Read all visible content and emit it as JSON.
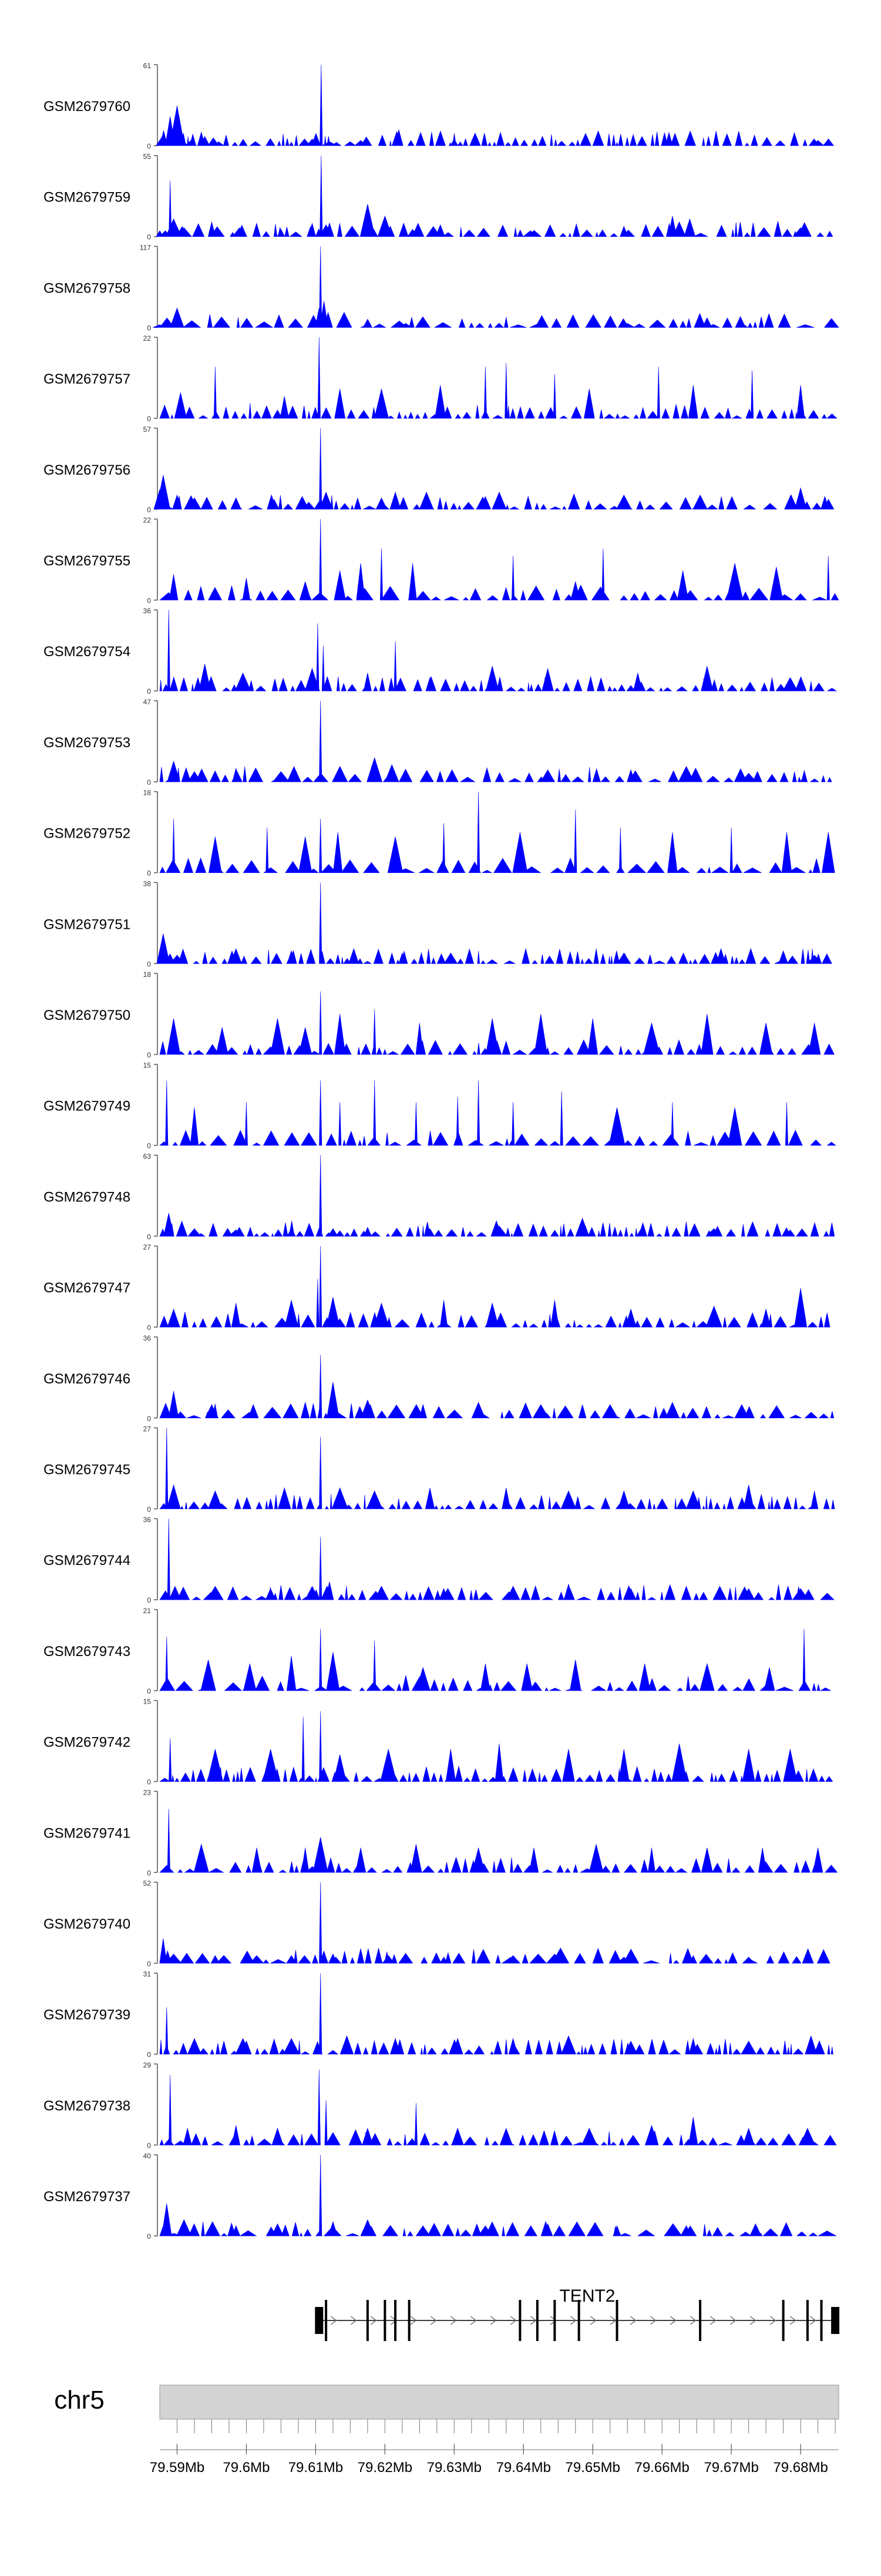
{
  "chart_data": {
    "type": "area",
    "title": "",
    "xlabel": "",
    "ylabel": "",
    "chromosome": "chr5",
    "gene_label": "TENT2",
    "colors": {
      "signal": "#0000ff",
      "axis": "#555555",
      "gene": "#000000",
      "ideogram": "#d3d3d3"
    },
    "x_range": [
      79.5875,
      79.6855
    ],
    "x_ticks": [
      {
        "value": 79.59,
        "label": "79.59Mb"
      },
      {
        "value": 79.6,
        "label": "79.6Mb"
      },
      {
        "value": 79.61,
        "label": "79.61Mb"
      },
      {
        "value": 79.62,
        "label": "79.62Mb"
      },
      {
        "value": 79.63,
        "label": "79.63Mb"
      },
      {
        "value": 79.64,
        "label": "79.64Mb"
      },
      {
        "value": 79.65,
        "label": "79.65Mb"
      },
      {
        "value": 79.66,
        "label": "79.66Mb"
      },
      {
        "value": 79.67,
        "label": "79.67Mb"
      },
      {
        "value": 79.68,
        "label": "79.68Mb"
      }
    ],
    "gene": {
      "name": "TENT2",
      "strand": "+",
      "start": 79.6105,
      "end": 79.6855,
      "exons": [
        79.6105,
        79.6115,
        79.6175,
        79.62,
        79.6215,
        79.6235,
        79.6395,
        79.642,
        79.6445,
        79.648,
        79.6535,
        79.6655,
        79.6775,
        79.681,
        79.683,
        79.685
      ]
    },
    "tracks": [
      {
        "name": "GSM2679760",
        "ymax": 61,
        "peak": [
          79.5875,
          0,
          79.588,
          8,
          79.589,
          22,
          79.59,
          30,
          79.5905,
          6,
          79.592,
          4,
          79.594,
          7,
          79.596,
          3,
          79.6095,
          5,
          79.6108,
          61,
          79.612,
          3,
          79.6165,
          4,
          79.622,
          12,
          79.63,
          5,
          79.661,
          10,
          79.6825,
          4
        ]
      },
      {
        "name": "GSM2679759",
        "ymax": 55,
        "peak": [
          79.5875,
          4,
          79.589,
          38,
          79.5895,
          12,
          79.591,
          6,
          79.595,
          10,
          79.599,
          6,
          79.605,
          5,
          79.6095,
          9,
          79.6108,
          55,
          79.6115,
          8,
          79.6175,
          22,
          79.62,
          14,
          79.624,
          5,
          79.628,
          8,
          79.641,
          4,
          79.6545,
          7,
          79.6615,
          14,
          79.664,
          12,
          79.68,
          6
        ]
      },
      {
        "name": "GSM2679758",
        "ymax": 117,
        "peak": [
          79.5875,
          4,
          79.59,
          28,
          79.596,
          6,
          79.6105,
          28,
          79.6107,
          117,
          79.6112,
          38,
          79.6118,
          10,
          79.6175,
          12,
          79.623,
          6,
          79.642,
          5,
          79.655,
          6,
          79.6665,
          14,
          79.6715,
          7
        ]
      },
      {
        "name": "GSM2679757",
        "ymax": 22,
        "peak": [
          79.5875,
          0,
          79.5905,
          7,
          79.5955,
          14,
          79.6055,
          6,
          79.6105,
          22,
          79.6135,
          8,
          79.6195,
          8,
          79.628,
          9,
          79.6345,
          14,
          79.6375,
          15,
          79.6445,
          12,
          79.6495,
          8,
          79.6595,
          14,
          79.6645,
          9,
          79.673,
          13,
          79.68,
          9
        ]
      },
      {
        "name": "GSM2679756",
        "ymax": 57,
        "peak": [
          79.5875,
          14,
          79.588,
          24,
          79.59,
          10,
          79.5925,
          8,
          79.5985,
          8,
          79.604,
          7,
          79.609,
          5,
          79.6107,
          57,
          79.6115,
          12,
          79.6195,
          8,
          79.6215,
          12,
          79.626,
          12,
          79.6345,
          9,
          79.6365,
          12,
          79.6545,
          10,
          79.6655,
          10,
          79.68,
          15,
          79.6835,
          9
        ]
      },
      {
        "name": "GSM2679755",
        "ymax": 22,
        "peak": [
          79.5875,
          0,
          79.5895,
          7,
          79.6,
          6,
          79.6085,
          5,
          79.6107,
          22,
          79.6135,
          8,
          79.6165,
          10,
          79.6195,
          14,
          79.624,
          10,
          79.6385,
          12,
          79.6475,
          5,
          79.6515,
          14,
          79.663,
          8,
          79.6705,
          10,
          79.6765,
          9,
          79.684,
          12
        ]
      },
      {
        "name": "GSM2679754",
        "ymax": 36,
        "peak": [
          79.5875,
          0,
          79.5888,
          36,
          79.5895,
          6,
          79.594,
          12,
          79.5995,
          8,
          79.6095,
          10,
          79.6103,
          30,
          79.6111,
          20,
          79.6175,
          8,
          79.6215,
          22,
          79.6265,
          6,
          79.6355,
          11,
          79.6435,
          10,
          79.6565,
          8,
          79.6665,
          11,
          79.6785,
          6
        ]
      },
      {
        "name": "GSM2679753",
        "ymax": 47,
        "peak": [
          79.5875,
          0,
          79.5895,
          12,
          79.5925,
          6,
          79.5985,
          8,
          79.605,
          6,
          79.6107,
          47,
          79.6135,
          9,
          79.6185,
          14,
          79.621,
          10,
          79.626,
          5,
          79.6435,
          7,
          79.6555,
          7,
          79.6635,
          9,
          79.6725,
          5,
          79.6805,
          4
        ]
      },
      {
        "name": "GSM2679752",
        "ymax": 18,
        "peak": [
          79.5875,
          0,
          79.5895,
          12,
          79.5955,
          8,
          79.603,
          10,
          79.6085,
          8,
          79.6107,
          12,
          79.6132,
          9,
          79.6215,
          8,
          79.6285,
          11,
          79.6335,
          18,
          79.6395,
          9,
          79.6475,
          14,
          79.654,
          10,
          79.6615,
          9,
          79.67,
          10,
          79.678,
          9,
          79.684,
          9
        ]
      },
      {
        "name": "GSM2679751",
        "ymax": 38,
        "peak": [
          79.5875,
          0,
          79.588,
          14,
          79.59,
          4,
          79.5985,
          7,
          79.6065,
          6,
          79.6107,
          38,
          79.6155,
          7,
          79.6225,
          5,
          79.6295,
          5,
          79.6545,
          5,
          79.6685,
          7,
          79.6775,
          6,
          79.682,
          4
        ]
      },
      {
        "name": "GSM2679750",
        "ymax": 18,
        "peak": [
          79.5875,
          0,
          79.5895,
          8,
          79.5965,
          6,
          79.6045,
          8,
          79.6085,
          6,
          79.6107,
          14,
          79.6135,
          9,
          79.6185,
          10,
          79.625,
          7,
          79.6355,
          8,
          79.6425,
          9,
          79.65,
          8,
          79.6585,
          7,
          79.6665,
          9,
          79.675,
          7,
          79.682,
          7
        ]
      },
      {
        "name": "GSM2679749",
        "ymax": 15,
        "peak": [
          79.5875,
          0,
          79.5885,
          12,
          79.5925,
          7,
          79.6,
          8,
          79.6107,
          12,
          79.6135,
          8,
          79.6185,
          12,
          79.6245,
          8,
          79.6305,
          9,
          79.6335,
          12,
          79.6385,
          8,
          79.6455,
          10,
          79.6535,
          7,
          79.6615,
          8,
          79.6705,
          7,
          79.678,
          8
        ]
      },
      {
        "name": "GSM2679748",
        "ymax": 63,
        "peak": [
          79.5875,
          0,
          79.5888,
          18,
          79.5925,
          6,
          79.5985,
          5,
          79.6065,
          6,
          79.6107,
          63,
          79.6125,
          6,
          79.6175,
          7,
          79.6265,
          6,
          79.6365,
          8,
          79.6485,
          14,
          79.657,
          6,
          79.6675,
          6,
          79.6785,
          5
        ]
      },
      {
        "name": "GSM2679747",
        "ymax": 27,
        "peak": [
          79.5875,
          0,
          79.5895,
          6,
          79.5985,
          8,
          79.6065,
          9,
          79.6103,
          16,
          79.6107,
          27,
          79.6125,
          10,
          79.6195,
          8,
          79.6285,
          9,
          79.6355,
          8,
          79.6445,
          9,
          79.6555,
          6,
          79.6675,
          7,
          79.675,
          6,
          79.68,
          13
        ]
      },
      {
        "name": "GSM2679746",
        "ymax": 36,
        "peak": [
          79.5875,
          0,
          79.5895,
          12,
          79.595,
          6,
          79.601,
          6,
          79.6085,
          7,
          79.6107,
          28,
          79.6125,
          16,
          79.6175,
          8,
          79.6255,
          6,
          79.6335,
          7,
          79.6425,
          6,
          79.6525,
          6,
          79.6615,
          7,
          79.6715,
          6
        ]
      },
      {
        "name": "GSM2679745",
        "ymax": 27,
        "peak": [
          79.5875,
          0,
          79.5885,
          27,
          79.5895,
          8,
          79.5955,
          6,
          79.6055,
          7,
          79.6107,
          24,
          79.6135,
          7,
          79.6185,
          6,
          79.6265,
          7,
          79.6375,
          7,
          79.6465,
          6,
          79.6545,
          6,
          79.6645,
          6,
          79.6725,
          8,
          79.682,
          6
        ]
      },
      {
        "name": "GSM2679744",
        "ymax": 36,
        "peak": [
          79.5875,
          0,
          79.5888,
          36,
          79.5897,
          6,
          79.5955,
          6,
          79.6035,
          5,
          79.6095,
          6,
          79.6107,
          28,
          79.612,
          8,
          79.6195,
          6,
          79.6285,
          5,
          79.6385,
          6,
          79.6465,
          7,
          79.6555,
          5,
          79.6635,
          6,
          79.6725,
          5,
          79.68,
          5
        ]
      },
      {
        "name": "GSM2679743",
        "ymax": 21,
        "peak": [
          79.5875,
          0,
          79.5885,
          14,
          79.5945,
          8,
          79.6005,
          7,
          79.6065,
          9,
          79.6107,
          16,
          79.6125,
          10,
          79.6185,
          13,
          79.6255,
          6,
          79.6345,
          7,
          79.6405,
          7,
          79.6475,
          8,
          79.6575,
          7,
          79.6665,
          7,
          79.6755,
          6,
          79.6805,
          16
        ]
      },
      {
        "name": "GSM2679742",
        "ymax": 15,
        "peak": [
          79.5875,
          0,
          79.589,
          8,
          79.5955,
          6,
          79.6035,
          6,
          79.6082,
          12,
          79.6107,
          13,
          79.6135,
          5,
          79.6205,
          6,
          79.6295,
          6,
          79.6365,
          7,
          79.6465,
          6,
          79.6545,
          6,
          79.6625,
          7,
          79.6725,
          6,
          79.6785,
          6
        ]
      },
      {
        "name": "GSM2679741",
        "ymax": 23,
        "peak": [
          79.5875,
          0,
          79.5888,
          18,
          79.5935,
          8,
          79.6015,
          7,
          79.6085,
          7,
          79.6107,
          10,
          79.6165,
          7,
          79.6245,
          8,
          79.6335,
          7,
          79.6415,
          7,
          79.6505,
          8,
          79.6585,
          7,
          79.6665,
          7,
          79.6745,
          7,
          79.6825,
          7
        ]
      },
      {
        "name": "GSM2679740",
        "ymax": 52,
        "peak": [
          79.5875,
          0,
          79.588,
          16,
          79.5895,
          6,
          79.5955,
          5,
          79.6015,
          5,
          79.6065,
          5,
          79.6107,
          52,
          79.6125,
          6,
          79.6205,
          5,
          79.6285,
          4,
          79.6385,
          5,
          79.6445,
          6,
          79.6545,
          4,
          79.6645,
          5,
          79.6725,
          4
        ]
      },
      {
        "name": "GSM2679739",
        "ymax": 31,
        "peak": [
          79.5875,
          0,
          79.5885,
          18,
          79.5925,
          6,
          79.5995,
          6,
          79.6065,
          6,
          79.6107,
          31,
          79.6145,
          7,
          79.6215,
          6,
          79.6305,
          6,
          79.6385,
          6,
          79.6465,
          7,
          79.6555,
          5,
          79.6645,
          6,
          79.6725,
          5,
          79.6815,
          7
        ]
      },
      {
        "name": "GSM2679738",
        "ymax": 29,
        "peak": [
          79.5875,
          0,
          79.589,
          25,
          79.5915,
          6,
          79.5985,
          7,
          79.6045,
          6,
          79.6105,
          27,
          79.6115,
          16,
          79.6175,
          6,
          79.6245,
          15,
          79.6305,
          6,
          79.6375,
          6,
          79.6495,
          6,
          79.6585,
          7,
          79.6645,
          10,
          79.6725,
          6,
          79.681,
          6
        ]
      },
      {
        "name": "GSM2679737",
        "ymax": 40,
        "peak": [
          79.5875,
          0,
          79.5885,
          16,
          79.591,
          8,
          79.5985,
          5,
          79.6045,
          6,
          79.6107,
          40,
          79.6125,
          7,
          79.6175,
          8,
          79.6255,
          5,
          79.6345,
          5,
          79.6435,
          6,
          79.6535,
          5,
          79.6635,
          5,
          79.6735,
          6
        ]
      }
    ]
  }
}
